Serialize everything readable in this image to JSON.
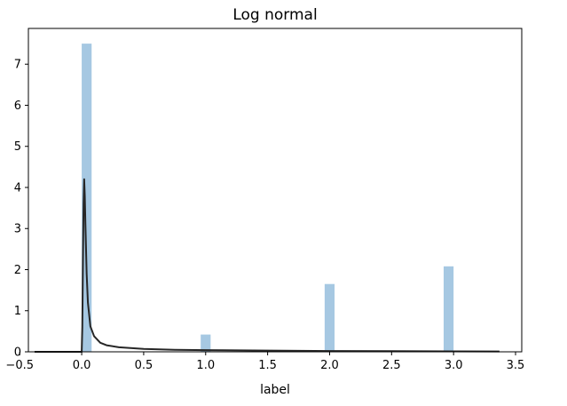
{
  "chart_data": {
    "type": "bar",
    "title": "Log normal",
    "xlabel": "label",
    "ylabel": "",
    "xlim": [
      -0.43,
      3.55
    ],
    "ylim": [
      0,
      7.87
    ],
    "xticks": [
      -0.5,
      0.0,
      0.5,
      1.0,
      1.5,
      2.0,
      2.5,
      3.0,
      3.5
    ],
    "xtick_labels": [
      "−0.5",
      "0.0",
      "0.5",
      "1.0",
      "1.5",
      "2.0",
      "2.5",
      "3.0",
      "3.5"
    ],
    "yticks": [
      0,
      1,
      2,
      3,
      4,
      5,
      6,
      7
    ],
    "ytick_labels": [
      "0",
      "1",
      "2",
      "3",
      "4",
      "5",
      "6",
      "7"
    ],
    "grid": false,
    "colors": {
      "bars": "#a6c8e2",
      "curve": "#262626"
    },
    "histogram": {
      "bin_width": 0.08,
      "bins": [
        {
          "x_start": 0.0,
          "x_end": 0.08,
          "density": 7.5
        },
        {
          "x_start": 0.96,
          "x_end": 1.04,
          "density": 0.42
        },
        {
          "x_start": 1.96,
          "x_end": 2.04,
          "density": 1.65
        },
        {
          "x_start": 2.92,
          "x_end": 3.0,
          "density": 2.08
        }
      ]
    },
    "fit_curve": {
      "name": "",
      "x_range": [
        -0.38,
        3.37
      ],
      "peak": {
        "x": 0.02,
        "y": 4.2
      },
      "points": [
        [
          -0.38,
          0.0
        ],
        [
          0.0,
          0.0
        ],
        [
          0.005,
          0.6
        ],
        [
          0.01,
          2.2
        ],
        [
          0.015,
          3.6
        ],
        [
          0.02,
          4.2
        ],
        [
          0.025,
          3.8
        ],
        [
          0.03,
          3.1
        ],
        [
          0.04,
          1.9
        ],
        [
          0.05,
          1.2
        ],
        [
          0.07,
          0.62
        ],
        [
          0.1,
          0.38
        ],
        [
          0.15,
          0.22
        ],
        [
          0.2,
          0.16
        ],
        [
          0.3,
          0.11
        ],
        [
          0.5,
          0.07
        ],
        [
          0.75,
          0.05
        ],
        [
          1.0,
          0.04
        ],
        [
          1.5,
          0.03
        ],
        [
          2.0,
          0.02
        ],
        [
          2.5,
          0.015
        ],
        [
          3.0,
          0.01
        ],
        [
          3.37,
          0.008
        ]
      ]
    }
  }
}
